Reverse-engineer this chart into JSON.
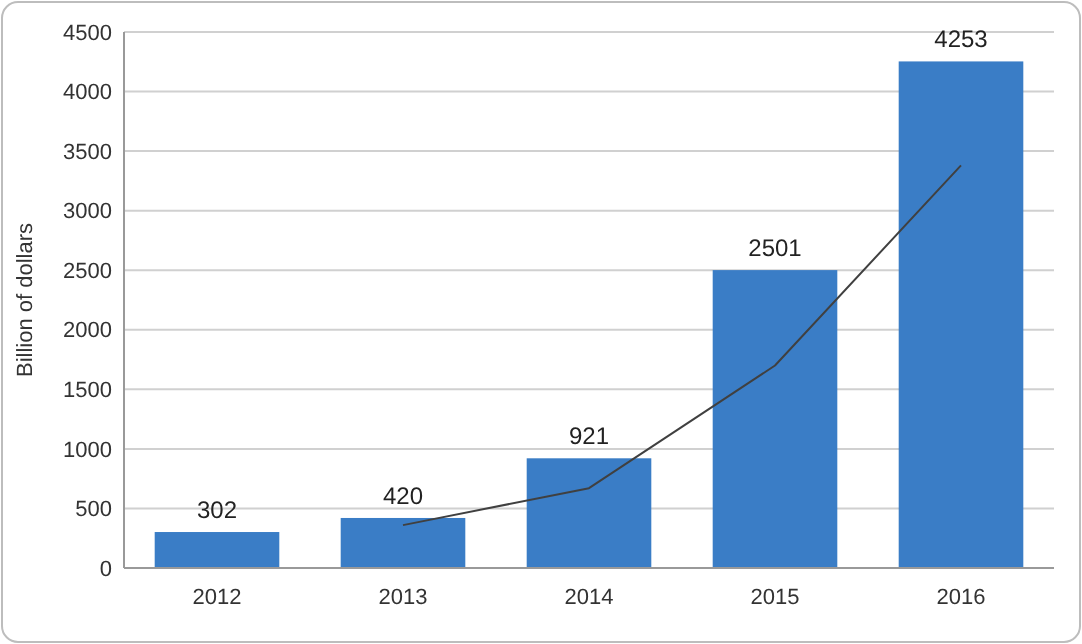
{
  "chart_data": {
    "type": "bar",
    "ylabel": "Billion of dollars",
    "categories": [
      "2012",
      "2013",
      "2014",
      "2015",
      "2016"
    ],
    "series": [
      {
        "color": "#3a7dc6",
        "values": [
          302,
          420,
          921,
          2501,
          4253
        ],
        "value_labels": [
          "302",
          "420",
          "921",
          "2501",
          "4253"
        ]
      },
      {
        "type": "line",
        "color": "#404040",
        "values": [
          null,
          360,
          670,
          1700,
          3380
        ]
      }
    ],
    "ylim": [
      0,
      4500
    ],
    "yticks": [
      0,
      500,
      1000,
      1500,
      2000,
      2500,
      3000,
      3500,
      4000,
      4500
    ],
    "grid": "y",
    "marker": "none"
  }
}
